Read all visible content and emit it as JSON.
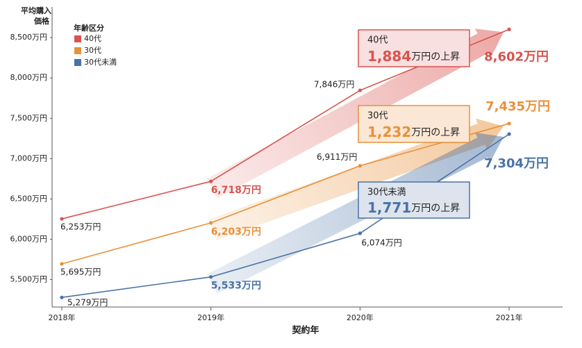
{
  "chart_data": {
    "type": "line",
    "ylabel": [
      "平均購入",
      "価格"
    ],
    "xlabel": "契約年",
    "legend_title": "年齢区分",
    "legend": "top-left",
    "categories": [
      "2018年",
      "2019年",
      "2020年",
      "2021年"
    ],
    "ylim": [
      5160,
      8880
    ],
    "yticks": [
      {
        "value": 5500,
        "label": "5,500万円"
      },
      {
        "value": 6000,
        "label": "6,000万円"
      },
      {
        "value": 6500,
        "label": "6,500万円"
      },
      {
        "value": 7000,
        "label": "7,000万円"
      },
      {
        "value": 7500,
        "label": "7,500万円"
      },
      {
        "value": 8000,
        "label": "8,000万円"
      },
      {
        "value": 8500,
        "label": "8,500万円"
      }
    ],
    "grid": false,
    "series": [
      {
        "name": "40代",
        "color": "#d9534f",
        "values": [
          6253,
          6718,
          7846,
          8602
        ],
        "value_labels": [
          "6,253万円",
          "6,718万円",
          "7,846万円",
          "8,602万円"
        ]
      },
      {
        "name": "30代",
        "color": "#e8913a",
        "values": [
          5695,
          6203,
          6911,
          7435
        ],
        "value_labels": [
          "5,695万円",
          "6,203万円",
          "6,911万円",
          "7,435万円"
        ]
      },
      {
        "name": "30代未満",
        "color": "#4a72a5",
        "values": [
          5279,
          5533,
          6074,
          7304
        ],
        "value_labels": [
          "5,279万円",
          "5,533万円",
          "6,074万円",
          "7,304万円"
        ]
      }
    ],
    "annotations": [
      {
        "label": "40代",
        "amount": "1,884",
        "suffix": "万円の上昇"
      },
      {
        "label": "30代",
        "amount": "1,232",
        "suffix": "万円の上昇"
      },
      {
        "label": "30代未満",
        "amount": "1,771",
        "suffix": "万円の上昇"
      }
    ]
  }
}
